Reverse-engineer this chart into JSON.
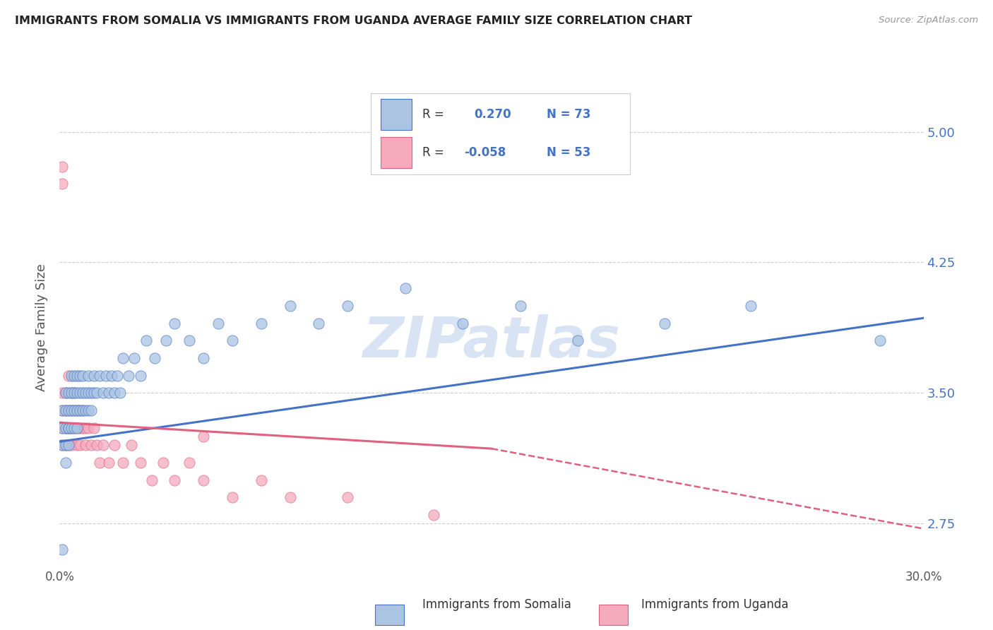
{
  "title": "IMMIGRANTS FROM SOMALIA VS IMMIGRANTS FROM UGANDA AVERAGE FAMILY SIZE CORRELATION CHART",
  "source": "Source: ZipAtlas.com",
  "ylabel": "Average Family Size",
  "xlim": [
    0.0,
    0.3
  ],
  "ylim": [
    2.5,
    5.25
  ],
  "yticks": [
    2.75,
    3.5,
    4.25,
    5.0
  ],
  "xticks": [
    0.0,
    0.05,
    0.1,
    0.15,
    0.2,
    0.25,
    0.3
  ],
  "xtick_labels": [
    "0.0%",
    "",
    "",
    "",
    "",
    "",
    "30.0%"
  ],
  "r_somalia": 0.27,
  "n_somalia": 73,
  "r_uganda": -0.058,
  "n_uganda": 53,
  "color_somalia": "#aac4e2",
  "color_uganda": "#f5aabe",
  "line_color_somalia": "#4472c4",
  "line_color_uganda": "#e06080",
  "background_color": "#ffffff",
  "grid_color": "#cccccc",
  "watermark": "ZIPatlas",
  "watermark_color": "#c8d8ee",
  "title_color": "#222222",
  "axis_label_color": "#555555",
  "tick_label_color_right": "#4472c4",
  "somalia_x": [
    0.001,
    0.001,
    0.001,
    0.001,
    0.002,
    0.002,
    0.002,
    0.002,
    0.002,
    0.003,
    0.003,
    0.003,
    0.003,
    0.003,
    0.004,
    0.004,
    0.004,
    0.004,
    0.005,
    0.005,
    0.005,
    0.005,
    0.006,
    0.006,
    0.006,
    0.006,
    0.007,
    0.007,
    0.007,
    0.008,
    0.008,
    0.008,
    0.009,
    0.009,
    0.01,
    0.01,
    0.01,
    0.011,
    0.011,
    0.012,
    0.012,
    0.013,
    0.014,
    0.015,
    0.016,
    0.017,
    0.018,
    0.019,
    0.02,
    0.021,
    0.022,
    0.024,
    0.026,
    0.028,
    0.03,
    0.033,
    0.037,
    0.04,
    0.045,
    0.05,
    0.055,
    0.06,
    0.07,
    0.08,
    0.09,
    0.1,
    0.12,
    0.14,
    0.16,
    0.18,
    0.21,
    0.24,
    0.285
  ],
  "somalia_y": [
    3.2,
    3.3,
    3.4,
    2.6,
    3.3,
    3.4,
    3.5,
    3.1,
    3.2,
    3.3,
    3.5,
    3.4,
    3.3,
    3.2,
    3.4,
    3.5,
    3.6,
    3.3,
    3.5,
    3.4,
    3.3,
    3.6,
    3.5,
    3.4,
    3.3,
    3.6,
    3.5,
    3.4,
    3.6,
    3.5,
    3.4,
    3.6,
    3.5,
    3.4,
    3.5,
    3.4,
    3.6,
    3.5,
    3.4,
    3.5,
    3.6,
    3.5,
    3.6,
    3.5,
    3.6,
    3.5,
    3.6,
    3.5,
    3.6,
    3.5,
    3.7,
    3.6,
    3.7,
    3.6,
    3.8,
    3.7,
    3.8,
    3.9,
    3.8,
    3.7,
    3.9,
    3.8,
    3.9,
    4.0,
    3.9,
    4.0,
    4.1,
    3.9,
    4.0,
    3.8,
    3.9,
    4.0,
    3.8
  ],
  "uganda_x": [
    0.001,
    0.001,
    0.001,
    0.001,
    0.001,
    0.002,
    0.002,
    0.002,
    0.002,
    0.003,
    0.003,
    0.003,
    0.003,
    0.004,
    0.004,
    0.004,
    0.004,
    0.005,
    0.005,
    0.005,
    0.006,
    0.006,
    0.006,
    0.007,
    0.007,
    0.007,
    0.008,
    0.008,
    0.009,
    0.009,
    0.01,
    0.011,
    0.012,
    0.013,
    0.014,
    0.015,
    0.017,
    0.019,
    0.022,
    0.025,
    0.028,
    0.032,
    0.036,
    0.04,
    0.045,
    0.05,
    0.06,
    0.07,
    0.08,
    0.1,
    0.13,
    0.001,
    0.05
  ],
  "uganda_y": [
    3.4,
    3.3,
    3.2,
    3.5,
    4.7,
    3.4,
    3.3,
    3.2,
    3.5,
    3.4,
    3.3,
    3.2,
    3.6,
    3.5,
    3.4,
    3.3,
    3.2,
    3.5,
    3.3,
    3.4,
    3.3,
    3.4,
    3.2,
    3.4,
    3.3,
    3.2,
    3.3,
    3.4,
    3.3,
    3.2,
    3.3,
    3.2,
    3.3,
    3.2,
    3.1,
    3.2,
    3.1,
    3.2,
    3.1,
    3.2,
    3.1,
    3.0,
    3.1,
    3.0,
    3.1,
    3.0,
    2.9,
    3.0,
    2.9,
    2.9,
    2.8,
    4.8,
    3.25
  ]
}
